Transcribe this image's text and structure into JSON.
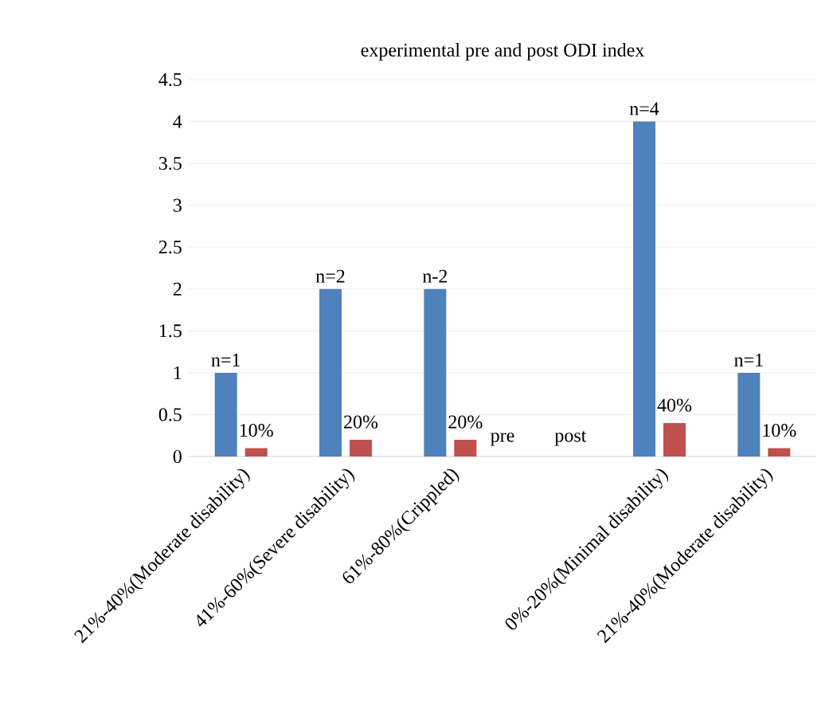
{
  "chart_data": {
    "type": "bar",
    "title": "experimental pre and post ODI index",
    "categories": [
      "21%-40%(Moderate disability)",
      "41%-60%(Severe disability)",
      "61%-80%(Crippled)",
      null,
      "0%-20%(Minimal disability)",
      "21%-40%(Moderate disability)"
    ],
    "series": [
      {
        "color": "#4f81bd",
        "values": [
          1,
          2,
          2,
          null,
          4,
          1
        ],
        "value_labels": [
          "n=1",
          "n=2",
          "n-2",
          null,
          "n=4",
          "n=1"
        ]
      },
      {
        "color": "#c0504d",
        "values": [
          0.1,
          0.2,
          0.2,
          null,
          0.4,
          0.1
        ],
        "value_labels": [
          "10%",
          "20%",
          "20%",
          null,
          "40%",
          "10%"
        ]
      }
    ],
    "ylim": [
      0,
      4.5
    ],
    "yticks": [
      0,
      0.5,
      1,
      1.5,
      2,
      2.5,
      3,
      3.5,
      4,
      4.5
    ],
    "grid": "y",
    "annotations": [
      "pre",
      "post"
    ]
  }
}
